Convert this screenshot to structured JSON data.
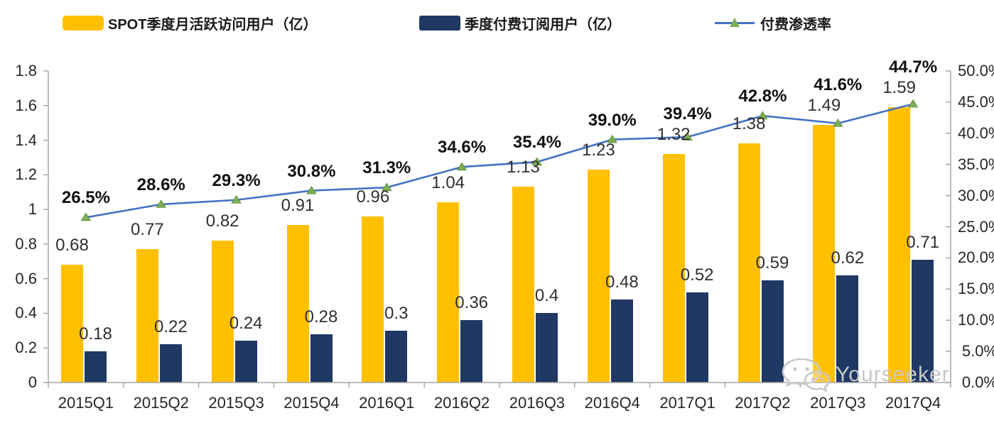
{
  "chart_data": {
    "type": "combo",
    "title": "",
    "categories": [
      "2015Q1",
      "2015Q2",
      "2015Q3",
      "2015Q4",
      "2016Q1",
      "2016Q2",
      "2016Q3",
      "2016Q4",
      "2017Q1",
      "2017Q2",
      "2017Q3",
      "2017Q4"
    ],
    "series": [
      {
        "name": "SPOT季度月活跃访问用户（亿）",
        "type": "bar",
        "color": "#FFC000",
        "axis": "left",
        "values": [
          0.68,
          0.77,
          0.82,
          0.91,
          0.96,
          1.04,
          1.13,
          1.23,
          1.32,
          1.38,
          1.49,
          1.59
        ],
        "labels": [
          "0.68",
          "0.77",
          "0.82",
          "0.91",
          "0.96",
          "1.04",
          "1.13",
          "1.23",
          "1.32",
          "1.38",
          "1.49",
          "1.59"
        ]
      },
      {
        "name": "季度付费订阅用户（亿）",
        "type": "bar",
        "color": "#1F3864",
        "axis": "left",
        "values": [
          0.18,
          0.22,
          0.24,
          0.28,
          0.3,
          0.36,
          0.4,
          0.48,
          0.52,
          0.59,
          0.62,
          0.71
        ],
        "labels": [
          "0.18",
          "0.22",
          "0.24",
          "0.28",
          "0.3",
          "0.36",
          "0.4",
          "0.48",
          "0.52",
          "0.59",
          "0.62",
          "0.71"
        ]
      },
      {
        "name": "付费渗透率",
        "type": "line",
        "color": "#4472C4",
        "marker": "triangle",
        "marker_color": "#7CAE53",
        "axis": "right",
        "values": [
          26.5,
          28.6,
          29.3,
          30.8,
          31.3,
          34.6,
          35.4,
          39.0,
          39.4,
          42.8,
          41.6,
          44.7
        ],
        "labels": [
          "26.5%",
          "28.6%",
          "29.3%",
          "30.8%",
          "31.3%",
          "34.6%",
          "35.4%",
          "39.0%",
          "39.4%",
          "42.8%",
          "41.6%",
          "44.7%"
        ]
      }
    ],
    "left_axis": {
      "min": 0,
      "max": 1.8,
      "ticks": [
        "1.8",
        "1.6",
        "1.4",
        "1.2",
        "1",
        "0.8",
        "0.6",
        "0.4",
        "0.2",
        "0"
      ]
    },
    "right_axis": {
      "min": 0,
      "max": 50,
      "ticks": [
        "50.0%",
        "45.0%",
        "40.0%",
        "35.0%",
        "30.0%",
        "25.0%",
        "20.0%",
        "15.0%",
        "10.0%",
        "5.0%",
        "0.0%"
      ]
    },
    "grid": false,
    "legend_position": "top",
    "axis_color": "#A6A6A6"
  },
  "watermark": {
    "text": "Yourseeker",
    "icon": "wechat-icon",
    "color": "#c9c9c9"
  }
}
